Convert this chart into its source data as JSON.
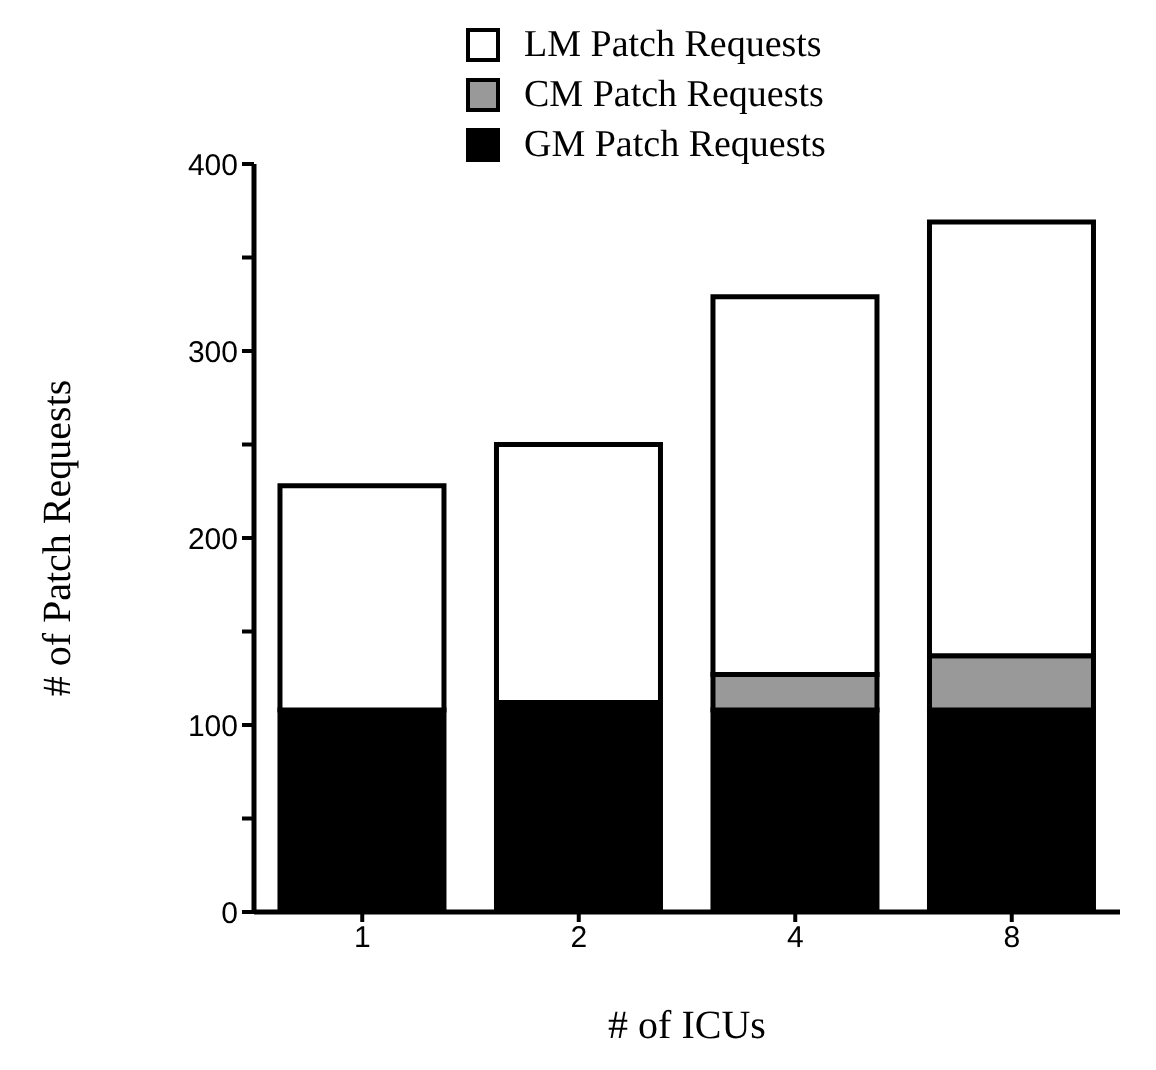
{
  "chart_data": {
    "type": "bar",
    "stacked": true,
    "xlabel": "# of ICUs",
    "ylabel": "# of Patch Requests",
    "categories": [
      "1",
      "2",
      "4",
      "8"
    ],
    "series": [
      {
        "name": "GM Patch Requests",
        "color": "#000000",
        "values": [
          108,
          112,
          108,
          108
        ]
      },
      {
        "name": "CM Patch Requests",
        "color": "#999999",
        "values": [
          0,
          0,
          19,
          29
        ]
      },
      {
        "name": "LM Patch Requests",
        "color": "#ffffff",
        "values": [
          120,
          138,
          202,
          232
        ]
      }
    ],
    "ylim": [
      0,
      400
    ],
    "yticks": [
      0,
      {
        "value": 50,
        "label": null
      },
      100,
      {
        "value": 150,
        "label": null
      },
      200,
      {
        "value": 250,
        "label": null
      },
      300,
      {
        "value": 350,
        "label": null
      },
      400
    ],
    "legend": "top",
    "grid": false
  }
}
